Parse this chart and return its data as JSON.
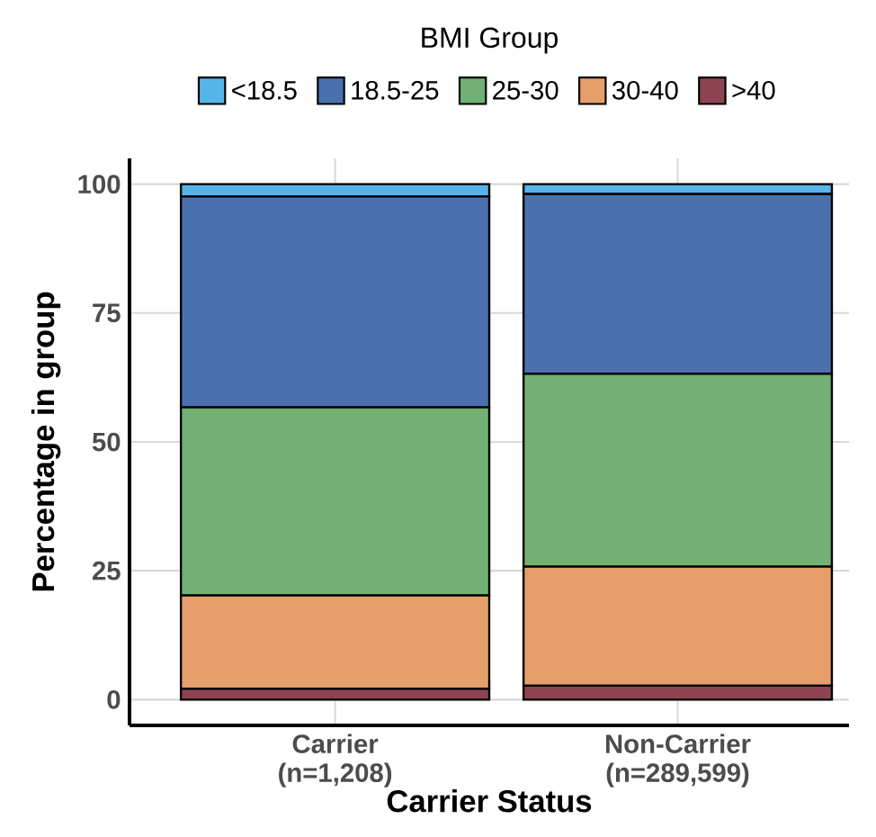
{
  "chart_data": {
    "type": "bar",
    "stacked": true,
    "xlabel": "Carrier Status",
    "ylabel": "Percentage in group",
    "legend_title": "BMI Group",
    "categories": [
      "Carrier (n=1,208)",
      "Non-Carrier (n=289,599)"
    ],
    "series": [
      {
        "name": ">40",
        "color": "#8c4452",
        "values": [
          2.1,
          2.7
        ]
      },
      {
        "name": "30-40",
        "color": "#e69e6a",
        "values": [
          18.1,
          23.1
        ]
      },
      {
        "name": "25-30",
        "color": "#72b073",
        "values": [
          36.5,
          37.4
        ]
      },
      {
        "name": "18.5-25",
        "color": "#4a70ae",
        "values": [
          40.9,
          34.9
        ]
      },
      {
        "name": "<18.5",
        "color": "#56b4e9",
        "values": [
          2.4,
          1.9
        ]
      }
    ],
    "ylim": [
      -5,
      105
    ],
    "yticks": [
      0,
      25,
      50,
      75,
      100
    ],
    "grid": true,
    "legend": "top"
  }
}
